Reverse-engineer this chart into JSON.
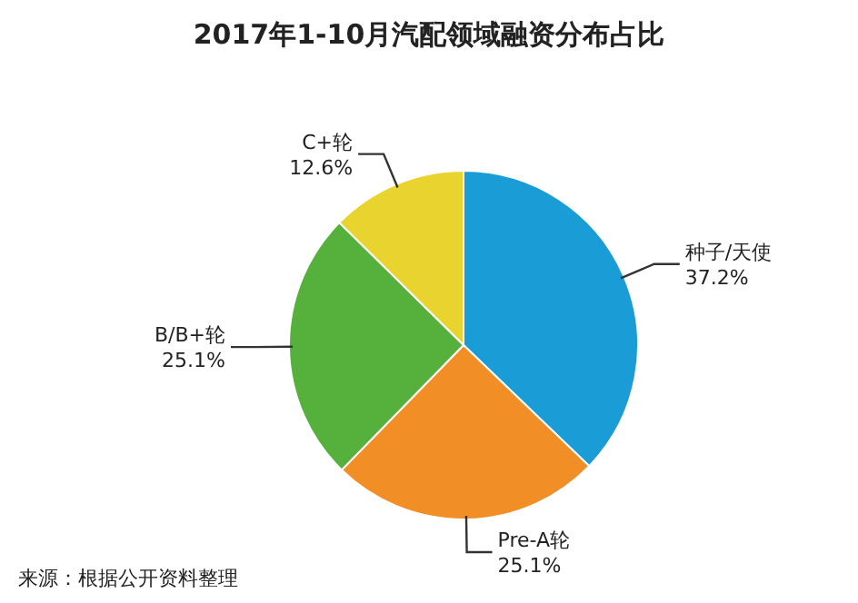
{
  "chart_data": {
    "type": "pie",
    "title": "2017年1-10月汽配领域融资分布占比",
    "categories": [
      "种子/天使",
      "Pre-A轮",
      "B/B+轮",
      "C+轮"
    ],
    "values": [
      37.2,
      25.1,
      25.1,
      12.6
    ],
    "value_labels": [
      "37.2%",
      "25.1%",
      "25.1%",
      "12.6%"
    ],
    "colors": [
      "#1a9cd7",
      "#f28e26",
      "#56b13c",
      "#e9d42f"
    ],
    "annotations": [
      "来源：根据公开资料整理"
    ]
  }
}
